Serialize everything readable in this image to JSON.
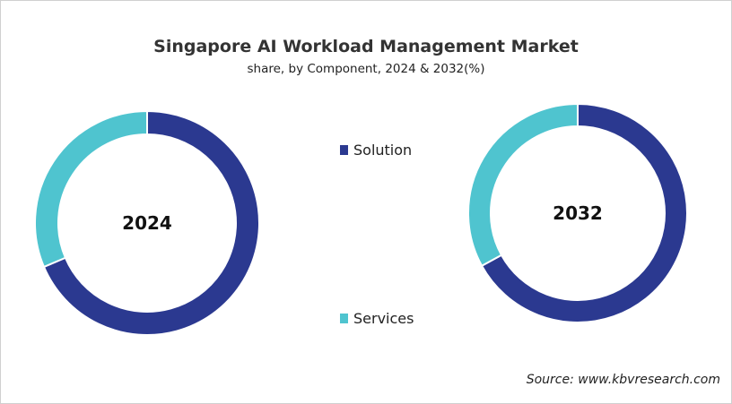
{
  "title": "Singapore AI Workload Management Market",
  "subtitle": "share, by Component, 2024 & 2032(%)",
  "source": "Source: www.kbvresearch.com",
  "colors": {
    "Solution": "#2b3990",
    "Services": "#4fc4cf"
  },
  "chart_data": [
    {
      "type": "pie",
      "donut": true,
      "label": "2024",
      "categories": [
        "Solution",
        "Services"
      ],
      "values": [
        68.6,
        31.4
      ]
    },
    {
      "type": "pie",
      "donut": true,
      "label": "2032",
      "categories": [
        "Solution",
        "Services"
      ],
      "values": [
        67,
        33
      ]
    }
  ],
  "legend": [
    {
      "name": "Solution"
    },
    {
      "name": "Services"
    }
  ]
}
